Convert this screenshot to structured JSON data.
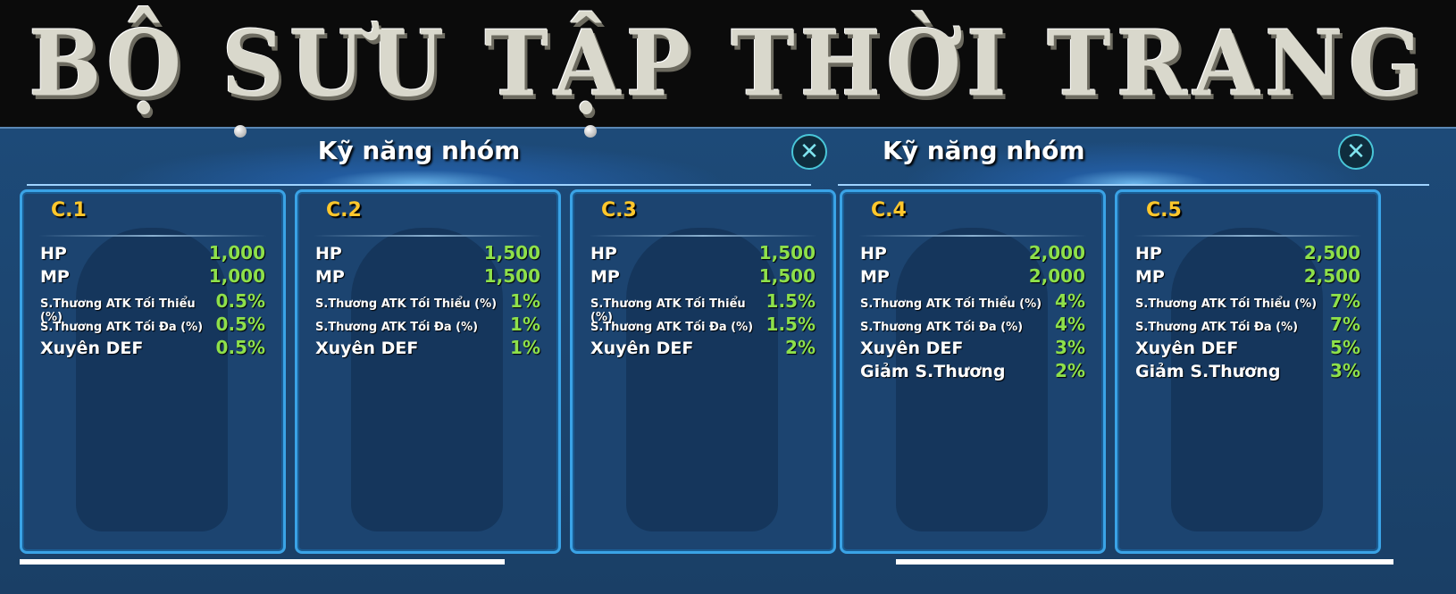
{
  "banner_title": "BỘ SƯU TẬP THỜI TRANG",
  "panels": [
    {
      "title": "Kỹ năng nhóm",
      "close_icon": "close-icon"
    },
    {
      "title": "Kỹ năng nhóm",
      "close_icon": "close-icon"
    }
  ],
  "colors": {
    "title": "#ffc72c",
    "value": "#8ee04a",
    "border": "#3aa3e6"
  },
  "cards": [
    {
      "title": "C.1",
      "rows": [
        [
          "HP",
          "1,000"
        ],
        [
          "MP",
          "1,000"
        ],
        [
          "S.Thương ATK Tối Thiểu (%)",
          "0.5%"
        ],
        [
          "S.Thương ATK Tối Đa (%)",
          "0.5%"
        ],
        [
          "Xuyên DEF",
          "0.5%"
        ]
      ]
    },
    {
      "title": "C.2",
      "rows": [
        [
          "HP",
          "1,500"
        ],
        [
          "MP",
          "1,500"
        ],
        [
          "S.Thương ATK Tối Thiểu (%)",
          "1%"
        ],
        [
          "S.Thương ATK Tối Đa (%)",
          "1%"
        ],
        [
          "Xuyên DEF",
          "1%"
        ]
      ]
    },
    {
      "title": "C.3",
      "rows": [
        [
          "HP",
          "1,500"
        ],
        [
          "MP",
          "1,500"
        ],
        [
          "S.Thương ATK Tối Thiểu (%)",
          "1.5%"
        ],
        [
          "S.Thương ATK Tối Đa (%)",
          "1.5%"
        ],
        [
          "Xuyên DEF",
          "2%"
        ]
      ]
    },
    {
      "title": "C.4",
      "rows": [
        [
          "HP",
          "2,000"
        ],
        [
          "MP",
          "2,000"
        ],
        [
          "S.Thương ATK Tối Thiểu (%)",
          "4%"
        ],
        [
          "S.Thương ATK Tối Đa (%)",
          "4%"
        ],
        [
          "Xuyên DEF",
          "3%"
        ],
        [
          "Giảm S.Thương",
          "2%"
        ]
      ]
    },
    {
      "title": "C.5",
      "rows": [
        [
          "HP",
          "2,500"
        ],
        [
          "MP",
          "2,500"
        ],
        [
          "S.Thương ATK Tối Thiểu (%)",
          "7%"
        ],
        [
          "S.Thương ATK Tối Đa (%)",
          "7%"
        ],
        [
          "Xuyên DEF",
          "5%"
        ],
        [
          "Giảm S.Thương",
          "3%"
        ]
      ]
    }
  ]
}
